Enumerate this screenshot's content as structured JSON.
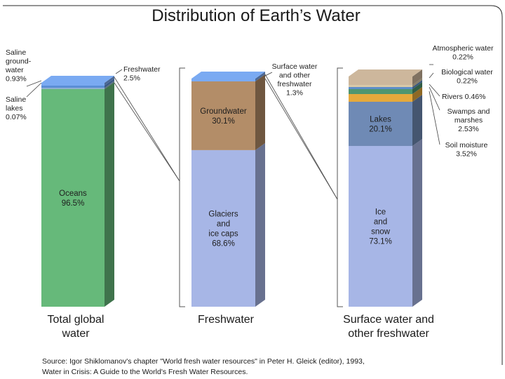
{
  "chart_data": {
    "type": "bar",
    "title": "Distribution of Earth’s Water",
    "source_lines": [
      "Source: Igor Shiklomanov's chapter \"World fresh water resources\" in Peter H. Gleick (editor), 1993,",
      "Water in Crisis: A Guide to the World's Fresh Water Resources."
    ],
    "columns": [
      {
        "label_lines": [
          "Total global",
          "water"
        ],
        "segments": [
          {
            "name": "Oceans",
            "value": 96.5,
            "value_text": "96.5%",
            "label_lines": [
              "Oceans",
              "96.5%"
            ],
            "color": "#66b97a",
            "label": "inside"
          },
          {
            "name": "Saline lakes",
            "value": 0.07,
            "value_text": "0.07%",
            "label_lines": [
              "Saline",
              "lakes",
              "0.07%"
            ],
            "color": "#8fb0d0",
            "label": "left"
          },
          {
            "name": "Saline groundwater",
            "value": 0.93,
            "value_text": "0.93%",
            "label_lines": [
              "Saline",
              "ground-",
              "water",
              "0.93%"
            ],
            "color": "#5b8ed6",
            "label": "left"
          },
          {
            "name": "Freshwater",
            "value": 2.5,
            "value_text": "2.5%",
            "label_lines": [
              "Freshwater",
              "2.5%"
            ],
            "color": "#7aaaf2",
            "label": "right"
          }
        ]
      },
      {
        "label_lines": [
          "Freshwater"
        ],
        "segments": [
          {
            "name": "Glaciers and ice caps",
            "value": 68.6,
            "value_text": "68.6%",
            "label_lines": [
              "Glaciers",
              "and",
              "ice caps",
              "68.6%"
            ],
            "color": "#a7b6e6",
            "label": "inside"
          },
          {
            "name": "Groundwater",
            "value": 30.1,
            "value_text": "30.1%",
            "label_lines": [
              "Groundwater",
              "30.1%"
            ],
            "color": "#b38d68",
            "label": "inside"
          },
          {
            "name": "Surface water and other freshwater",
            "value": 1.3,
            "value_text": "1.3%",
            "label_lines": [
              "Surface water",
              "and other",
              "freshwater",
              "1.3%"
            ],
            "color": "#7aaaf2",
            "label": "right"
          }
        ]
      },
      {
        "label_lines": [
          "Surface water and",
          "other freshwater"
        ],
        "segments": [
          {
            "name": "Ice and snow",
            "value": 73.1,
            "value_text": "73.1%",
            "label_lines": [
              "Ice",
              "and",
              "snow",
              "73.1%"
            ],
            "color": "#a7b6e6",
            "label": "inside"
          },
          {
            "name": "Lakes",
            "value": 20.1,
            "value_text": "20.1%",
            "label_lines": [
              "Lakes",
              "20.1%"
            ],
            "color": "#6f8ab5",
            "label": "inside"
          },
          {
            "name": "Soil moisture",
            "value": 3.52,
            "value_text": "3.52%",
            "label_lines": [
              "Soil moisture",
              "3.52%"
            ],
            "color": "#e5a93c",
            "label": "right"
          },
          {
            "name": "Swamps and marshes",
            "value": 2.53,
            "value_text": "2.53%",
            "label_lines": [
              "Swamps and",
              "marshes",
              "2.53%"
            ],
            "color": "#4f9670",
            "label": "right"
          },
          {
            "name": "Rivers",
            "value": 0.46,
            "value_text": "0.46%",
            "label_lines": [
              "Rivers  0.46%"
            ],
            "color": "#5e8ec9",
            "label": "right"
          },
          {
            "name": "Biological water",
            "value": 0.22,
            "value_text": "0.22%",
            "label_lines": [
              "Biological water",
              "0.22%"
            ],
            "color": "#d9c9a8",
            "label": "right"
          },
          {
            "name": "Atmospheric water",
            "value": 0.22,
            "value_text": "0.22%",
            "label_lines": [
              "Atmospheric water",
              "0.22%"
            ],
            "color": "#cdb79c",
            "label": "right"
          }
        ]
      }
    ]
  }
}
